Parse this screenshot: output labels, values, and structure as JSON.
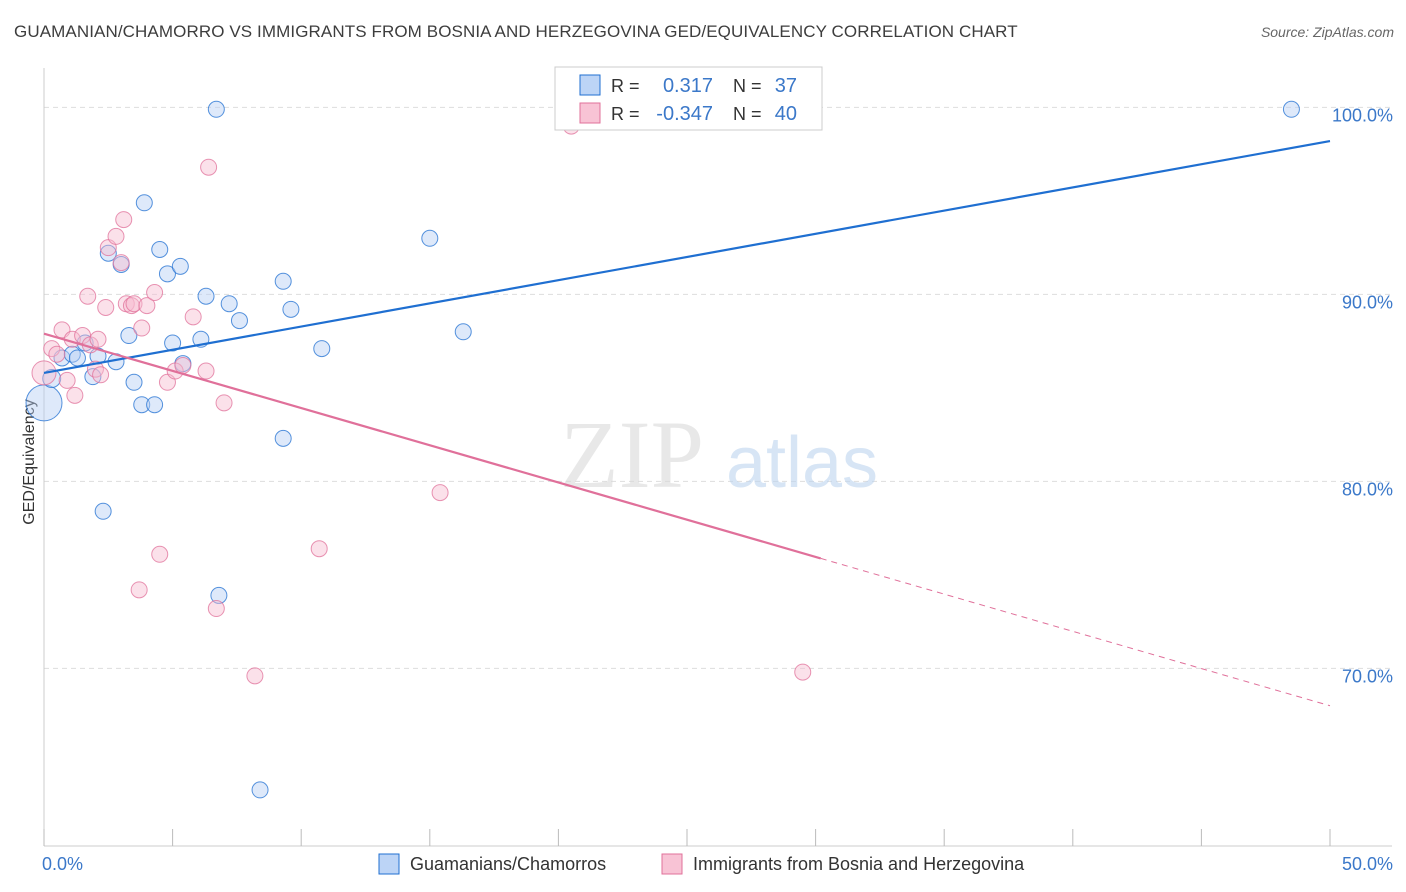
{
  "title": "GUAMANIAN/CHAMORRO VS IMMIGRANTS FROM BOSNIA AND HERZEGOVINA GED/EQUIVALENCY CORRELATION CHART",
  "source": "Source: ZipAtlas.com",
  "watermark": {
    "zip": "ZIP",
    "atlas": "atlas"
  },
  "colors": {
    "blue": "#1f6fd1",
    "blue_fill": "#b5cff5",
    "pink": "#e0709a",
    "pink_fill": "#f7bcd0",
    "value_text": "#3b78c9",
    "grid": "#dddddd"
  },
  "legend_box": [
    {
      "r_label": "R =",
      "r_value": "0.317",
      "n_label": "N =",
      "n_value": "37"
    },
    {
      "r_label": "R =",
      "r_value": "-0.347",
      "n_label": "N =",
      "n_value": "40"
    }
  ],
  "chart_data": {
    "type": "scatter",
    "ylabel": "GED/Equivalency",
    "xlim": [
      0,
      50
    ],
    "ylim": [
      60.5,
      102
    ],
    "x_tick_labels": [
      "0.0%",
      "50.0%"
    ],
    "y_ticks": [
      70,
      80,
      90,
      100
    ],
    "y_tick_labels": [
      "70.0%",
      "80.0%",
      "90.0%",
      "100.0%"
    ],
    "grid": "horizontal dashed",
    "legend_position": "bottom-center",
    "series": [
      {
        "name": "Guamanians/Chamorros",
        "color": "blue",
        "r": 0.317,
        "n": 37,
        "trend": {
          "x": [
            0,
            50
          ],
          "y": [
            85.8,
            98.2
          ],
          "dashed_after": null
        },
        "points": [
          [
            0.0,
            84.2,
            18
          ],
          [
            0.3,
            85.5,
            9
          ],
          [
            0.7,
            86.6,
            8
          ],
          [
            1.1,
            86.8,
            8
          ],
          [
            1.3,
            86.6,
            8
          ],
          [
            1.6,
            87.4,
            8
          ],
          [
            1.9,
            85.6,
            8
          ],
          [
            2.1,
            86.7,
            8
          ],
          [
            2.3,
            78.4,
            8
          ],
          [
            2.5,
            92.2,
            8
          ],
          [
            2.8,
            86.4,
            8
          ],
          [
            3.0,
            91.6,
            8
          ],
          [
            3.3,
            87.8,
            8
          ],
          [
            3.5,
            85.3,
            8
          ],
          [
            3.8,
            84.1,
            8
          ],
          [
            3.9,
            94.9,
            8
          ],
          [
            4.3,
            84.1,
            8
          ],
          [
            4.5,
            92.4,
            8
          ],
          [
            4.8,
            91.1,
            8
          ],
          [
            5.0,
            87.4,
            8
          ],
          [
            5.3,
            91.5,
            8
          ],
          [
            5.4,
            86.3,
            8
          ],
          [
            6.1,
            87.6,
            8
          ],
          [
            6.3,
            89.9,
            8
          ],
          [
            6.7,
            99.9,
            8
          ],
          [
            6.8,
            73.9,
            8
          ],
          [
            7.2,
            89.5,
            8
          ],
          [
            7.6,
            88.6,
            8
          ],
          [
            8.4,
            63.5,
            8
          ],
          [
            9.3,
            82.3,
            8
          ],
          [
            9.3,
            90.7,
            8
          ],
          [
            9.6,
            89.2,
            8
          ],
          [
            10.8,
            87.1,
            8
          ],
          [
            15.0,
            93.0,
            8
          ],
          [
            16.3,
            88.0,
            8
          ],
          [
            48.5,
            99.9,
            8
          ]
        ]
      },
      {
        "name": "Immigrants from Bosnia and Herzegovina",
        "color": "pink",
        "r": -0.347,
        "n": 40,
        "trend": {
          "x": [
            0,
            50
          ],
          "y": [
            87.9,
            68.0
          ],
          "dashed_after": 30.2
        },
        "points": [
          [
            0.0,
            85.8,
            12
          ],
          [
            0.3,
            87.1,
            8
          ],
          [
            0.5,
            86.8,
            8
          ],
          [
            0.7,
            88.1,
            8
          ],
          [
            0.9,
            85.4,
            8
          ],
          [
            1.1,
            87.6,
            8
          ],
          [
            1.2,
            84.6,
            8
          ],
          [
            1.5,
            87.8,
            8
          ],
          [
            1.7,
            89.9,
            8
          ],
          [
            1.8,
            87.3,
            8
          ],
          [
            2.0,
            86.0,
            8
          ],
          [
            2.1,
            87.6,
            8
          ],
          [
            2.2,
            85.7,
            8
          ],
          [
            2.4,
            89.3,
            8
          ],
          [
            2.5,
            92.5,
            8
          ],
          [
            2.8,
            93.1,
            8
          ],
          [
            3.0,
            91.7,
            8
          ],
          [
            3.1,
            94.0,
            8
          ],
          [
            3.2,
            89.5,
            8
          ],
          [
            3.4,
            89.4,
            8
          ],
          [
            3.5,
            89.5,
            8
          ],
          [
            3.7,
            74.2,
            8
          ],
          [
            3.8,
            88.2,
            8
          ],
          [
            4.0,
            89.4,
            8
          ],
          [
            4.3,
            90.1,
            8
          ],
          [
            4.5,
            76.1,
            8
          ],
          [
            4.8,
            85.3,
            8
          ],
          [
            5.1,
            85.9,
            8
          ],
          [
            5.4,
            86.2,
            8
          ],
          [
            5.8,
            88.8,
            8
          ],
          [
            6.3,
            85.9,
            8
          ],
          [
            6.4,
            96.8,
            8
          ],
          [
            6.7,
            73.2,
            8
          ],
          [
            7.0,
            84.2,
            8
          ],
          [
            8.2,
            69.6,
            8
          ],
          [
            10.7,
            76.4,
            8
          ],
          [
            15.4,
            79.4,
            8
          ],
          [
            20.5,
            99.0,
            8
          ],
          [
            29.5,
            69.8,
            8
          ]
        ]
      }
    ]
  }
}
